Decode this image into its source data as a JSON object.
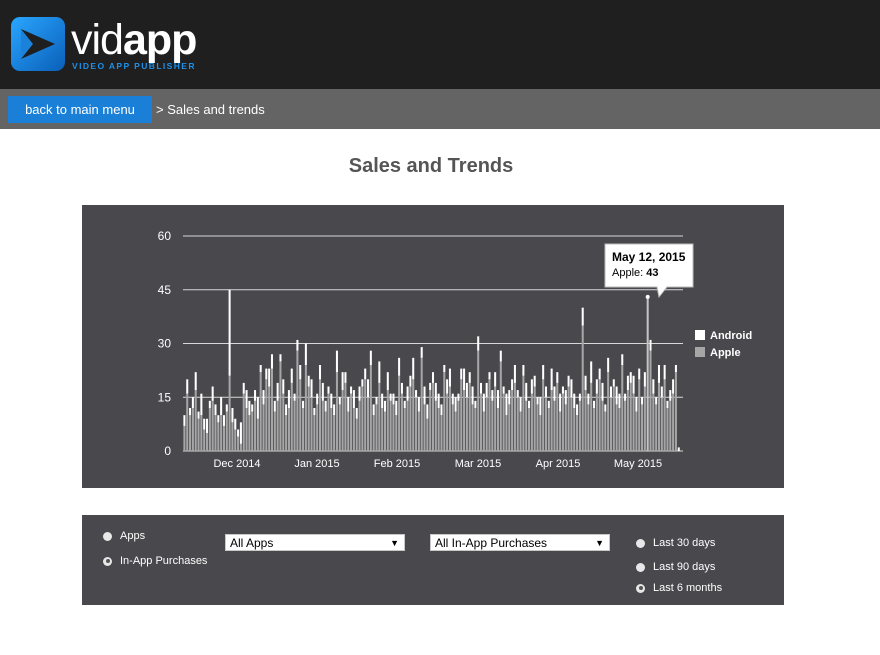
{
  "app": {
    "logo_text_light": "vid",
    "logo_text_bold": "app",
    "logo_tagline": "VIDEO APP PUBLISHER"
  },
  "nav": {
    "back_label": "back to main menu",
    "breadcrumb": "> Sales and trends"
  },
  "page": {
    "title": "Sales and Trends"
  },
  "chart_data": {
    "type": "bar",
    "stacked": true,
    "y_ticks": [
      0,
      15,
      30,
      45,
      60
    ],
    "ylim": [
      0,
      60
    ],
    "x_ticks": [
      "Dec 2014",
      "Jan 2015",
      "Feb 2015",
      "Mar 2015",
      "Apr 2015",
      "May 2015"
    ],
    "series": [
      {
        "name": "Android",
        "color": "#ffffff",
        "values": [
          3,
          4,
          2,
          3,
          5,
          2,
          6,
          3,
          4,
          2,
          4,
          3,
          2,
          5,
          3,
          2,
          24,
          4,
          3,
          2,
          6,
          3,
          5,
          4,
          2,
          3,
          6,
          2,
          4,
          3,
          5,
          4,
          3,
          5,
          2,
          4,
          3,
          5,
          4,
          2,
          3,
          4,
          2,
          6,
          3,
          5,
          2,
          3,
          4,
          5,
          3,
          2,
          4,
          3,
          6,
          2,
          5,
          3,
          4,
          2,
          5,
          3,
          4,
          2,
          3,
          5,
          4,
          3,
          2,
          6,
          4,
          3,
          5,
          2,
          3,
          4,
          5,
          3,
          2,
          4,
          3,
          6,
          2,
          4,
          3,
          5,
          4,
          2,
          3,
          5,
          4,
          3,
          2,
          4,
          5,
          3,
          4,
          2,
          3,
          6,
          4,
          3,
          5,
          2,
          4,
          3,
          5,
          4,
          2,
          3,
          4,
          5,
          3,
          2,
          6,
          4,
          3,
          5,
          2,
          4,
          3,
          5,
          2,
          4,
          3,
          2,
          5,
          4,
          3,
          2,
          6,
          4,
          3,
          5,
          2,
          4,
          3,
          5,
          4,
          3,
          2,
          5,
          4,
          3,
          6,
          2,
          4,
          3,
          5,
          2,
          4,
          3,
          2,
          5,
          4,
          3,
          2,
          4,
          3,
          5,
          4,
          3,
          2,
          4,
          0,
          3,
          4,
          2,
          5,
          3,
          4,
          2,
          3,
          4,
          2,
          1,
          0
        ]
      },
      {
        "name": "Apple",
        "color": "#a6a6a6",
        "values": [
          7,
          16,
          10,
          12,
          17,
          9,
          10,
          6,
          5,
          12,
          14,
          10,
          8,
          10,
          7,
          11,
          21,
          8,
          6,
          4,
          2,
          16,
          12,
          10,
          11,
          14,
          9,
          22,
          13,
          20,
          18,
          23,
          11,
          14,
          25,
          16,
          10,
          12,
          19,
          14,
          28,
          20,
          12,
          24,
          18,
          15,
          10,
          13,
          20,
          14,
          11,
          16,
          12,
          10,
          22,
          13,
          17,
          19,
          11,
          16,
          12,
          9,
          14,
          18,
          20,
          15,
          24,
          10,
          13,
          19,
          12,
          11,
          17,
          14,
          13,
          10,
          21,
          16,
          12,
          14,
          18,
          20,
          15,
          11,
          26,
          13,
          9,
          17,
          19,
          14,
          12,
          10,
          22,
          16,
          18,
          13,
          11,
          14,
          20,
          17,
          15,
          19,
          13,
          12,
          28,
          16,
          11,
          15,
          20,
          14,
          18,
          12,
          25,
          16,
          10,
          13,
          17,
          19,
          15,
          11,
          21,
          14,
          12,
          16,
          18,
          13,
          10,
          20,
          15,
          12,
          17,
          14,
          19,
          11,
          16,
          13,
          18,
          15,
          12,
          10,
          14,
          35,
          17,
          13,
          19,
          12,
          16,
          20,
          14,
          11,
          22,
          15,
          18,
          13,
          12,
          24,
          14,
          17,
          19,
          16,
          11,
          20,
          13,
          18,
          43,
          28,
          16,
          13,
          19,
          15,
          20,
          12,
          14,
          16,
          22,
          0,
          0
        ]
      }
    ],
    "tooltip": {
      "date": "May 12, 2015",
      "series": "Apple",
      "value": 43
    }
  },
  "controls": {
    "type_options": [
      {
        "label": "Apps",
        "checked": false
      },
      {
        "label": "In-App Purchases",
        "checked": true
      }
    ],
    "apps_select": "All Apps",
    "iap_select": "All In-App Purchases",
    "range_options": [
      {
        "label": "Last 30 days",
        "checked": false
      },
      {
        "label": "Last 90 days",
        "checked": false
      },
      {
        "label": "Last 6 months",
        "checked": true
      }
    ]
  },
  "colors": {
    "header_bg": "#1f1f1f",
    "nav_bg": "#646464",
    "accent": "#1a7fd6",
    "panel_bg": "#49484d"
  }
}
